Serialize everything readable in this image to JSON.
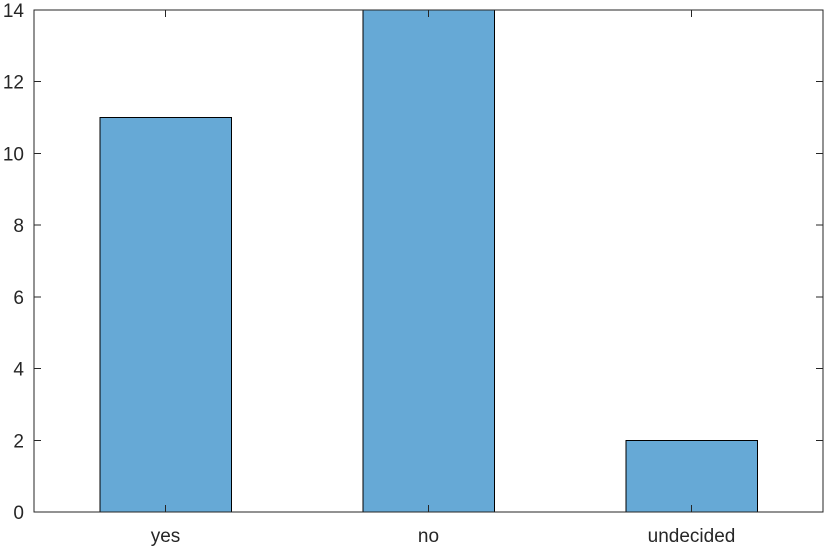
{
  "chart_data": {
    "type": "bar",
    "categories": [
      "yes",
      "no",
      "undecided"
    ],
    "values": [
      11,
      14,
      2
    ],
    "title": "",
    "xlabel": "",
    "ylabel": "",
    "ylim": [
      0,
      14
    ],
    "yticks": [
      0,
      2,
      4,
      6,
      8,
      10,
      12,
      14
    ],
    "grid": false,
    "legend": "none",
    "bar_color": "#66a9d6",
    "bar_edge_color": "#000000",
    "axis_color": "#262626"
  }
}
